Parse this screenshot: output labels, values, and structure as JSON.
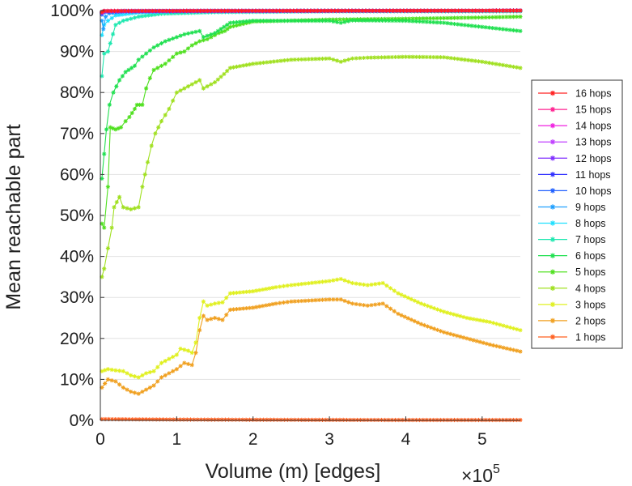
{
  "chart_data": {
    "type": "line",
    "xlabel": "Volume (m) [edges]",
    "ylabel": "Mean reachable part",
    "x_multiplier": {
      "base": "×10",
      "exponent": "5"
    },
    "xlim": [
      0,
      5.5
    ],
    "ylim": [
      0,
      100
    ],
    "x_ticks": [
      0,
      1,
      2,
      3,
      4,
      5
    ],
    "x_tick_labels": [
      "0",
      "1",
      "2",
      "3",
      "4",
      "5"
    ],
    "y_ticks": [
      0,
      10,
      20,
      30,
      40,
      50,
      60,
      70,
      80,
      90,
      100
    ],
    "y_tick_labels": [
      "0%",
      "10%",
      "20%",
      "30%",
      "40%",
      "50%",
      "60%",
      "70%",
      "80%",
      "90%",
      "100%"
    ],
    "grid": "horizontal",
    "legend_position": "right",
    "series": [
      {
        "name": "16 hops",
        "color": "#ff2020",
        "points": [
          [
            0.02,
            99.6
          ],
          [
            0.05,
            99.9
          ],
          [
            5.5,
            100
          ]
        ]
      },
      {
        "name": "15 hops",
        "color": "#ff2090",
        "points": [
          [
            0.02,
            99.6
          ],
          [
            0.05,
            99.9
          ],
          [
            5.5,
            100
          ]
        ]
      },
      {
        "name": "14 hops",
        "color": "#f020e0",
        "points": [
          [
            0.02,
            99.6
          ],
          [
            0.05,
            99.9
          ],
          [
            5.5,
            100
          ]
        ]
      },
      {
        "name": "13 hops",
        "color": "#c040ff",
        "points": [
          [
            0.02,
            99.5
          ],
          [
            0.05,
            99.9
          ],
          [
            5.5,
            100
          ]
        ]
      },
      {
        "name": "12 hops",
        "color": "#8030ff",
        "points": [
          [
            0.02,
            99.4
          ],
          [
            0.05,
            99.8
          ],
          [
            5.5,
            100
          ]
        ]
      },
      {
        "name": "11 hops",
        "color": "#3030ff",
        "points": [
          [
            0.02,
            99.3
          ],
          [
            0.06,
            99.8
          ],
          [
            5.5,
            100
          ]
        ]
      },
      {
        "name": "10 hops",
        "color": "#2060ff",
        "points": [
          [
            0.02,
            99.0
          ],
          [
            0.06,
            99.6
          ],
          [
            0.3,
            99.9
          ],
          [
            5.5,
            100
          ]
        ]
      },
      {
        "name": "9 hops",
        "color": "#20a0ff",
        "points": [
          [
            0.02,
            97.5
          ],
          [
            0.04,
            95.5
          ],
          [
            0.07,
            98.5
          ],
          [
            0.12,
            99.3
          ],
          [
            0.3,
            99.7
          ],
          [
            1,
            99.9
          ],
          [
            5.5,
            100
          ]
        ]
      },
      {
        "name": "8 hops",
        "color": "#20e0ff",
        "points": [
          [
            0.02,
            94
          ],
          [
            0.05,
            96.5
          ],
          [
            0.1,
            97.5
          ],
          [
            0.2,
            98.8
          ],
          [
            0.5,
            99.5
          ],
          [
            1,
            99.8
          ],
          [
            5.5,
            100
          ]
        ]
      },
      {
        "name": "7 hops",
        "color": "#20e8b0",
        "points": [
          [
            0.02,
            84
          ],
          [
            0.05,
            89.5
          ],
          [
            0.1,
            90
          ],
          [
            0.13,
            92
          ],
          [
            0.2,
            96.5
          ],
          [
            0.3,
            97.5
          ],
          [
            0.5,
            98.5
          ],
          [
            0.8,
            99.2
          ],
          [
            1.5,
            99.6
          ],
          [
            3,
            99.8
          ],
          [
            5.5,
            99.8
          ]
        ]
      },
      {
        "name": "6 hops",
        "color": "#20e050",
        "points": [
          [
            0.02,
            59
          ],
          [
            0.05,
            65
          ],
          [
            0.08,
            71
          ],
          [
            0.12,
            77
          ],
          [
            0.17,
            80
          ],
          [
            0.25,
            83
          ],
          [
            0.33,
            85
          ],
          [
            0.45,
            86.5
          ],
          [
            0.5,
            88
          ],
          [
            0.6,
            89.5
          ],
          [
            0.7,
            91
          ],
          [
            0.85,
            92.5
          ],
          [
            1.0,
            93.5
          ],
          [
            1.1,
            94.2
          ],
          [
            1.3,
            95
          ],
          [
            1.35,
            93.5
          ],
          [
            1.5,
            94.5
          ],
          [
            1.62,
            96
          ],
          [
            1.7,
            97
          ],
          [
            2,
            97.5
          ],
          [
            2.5,
            97.5
          ],
          [
            3,
            97.5
          ],
          [
            3.15,
            97
          ],
          [
            3.3,
            97.6
          ],
          [
            4,
            97.5
          ],
          [
            4.5,
            97
          ],
          [
            5,
            96
          ],
          [
            5.5,
            95
          ]
        ]
      },
      {
        "name": "5 hops",
        "color": "#50e020",
        "points": [
          [
            0.02,
            48
          ],
          [
            0.05,
            47
          ],
          [
            0.1,
            57
          ],
          [
            0.13,
            71.5
          ],
          [
            0.2,
            71
          ],
          [
            0.27,
            71.5
          ],
          [
            0.33,
            73
          ],
          [
            0.38,
            74
          ],
          [
            0.45,
            76
          ],
          [
            0.48,
            77
          ],
          [
            0.55,
            77
          ],
          [
            0.6,
            81
          ],
          [
            0.65,
            83.5
          ],
          [
            0.7,
            85.5
          ],
          [
            0.85,
            87
          ],
          [
            1.0,
            89.5
          ],
          [
            1.1,
            90
          ],
          [
            1.2,
            91.5
          ],
          [
            1.3,
            92.5
          ],
          [
            1.4,
            93
          ],
          [
            1.5,
            94
          ],
          [
            1.55,
            94.5
          ],
          [
            1.63,
            95
          ],
          [
            1.7,
            96
          ],
          [
            2,
            97.3
          ],
          [
            3,
            97.8
          ],
          [
            4,
            98
          ],
          [
            5,
            98.3
          ],
          [
            5.5,
            98.5
          ]
        ]
      },
      {
        "name": "4 hops",
        "color": "#a0e020",
        "points": [
          [
            0.02,
            35
          ],
          [
            0.05,
            37
          ],
          [
            0.1,
            42
          ],
          [
            0.15,
            47
          ],
          [
            0.18,
            52
          ],
          [
            0.25,
            54.5
          ],
          [
            0.3,
            52
          ],
          [
            0.4,
            51.5
          ],
          [
            0.5,
            52
          ],
          [
            0.55,
            57
          ],
          [
            0.62,
            63
          ],
          [
            0.67,
            67
          ],
          [
            0.72,
            70
          ],
          [
            0.8,
            73
          ],
          [
            0.9,
            76
          ],
          [
            1.0,
            80
          ],
          [
            1.1,
            81
          ],
          [
            1.2,
            82
          ],
          [
            1.3,
            83
          ],
          [
            1.35,
            81
          ],
          [
            1.5,
            82.5
          ],
          [
            1.62,
            84.5
          ],
          [
            1.7,
            86
          ],
          [
            2,
            87
          ],
          [
            2.5,
            88
          ],
          [
            3,
            88.3
          ],
          [
            3.15,
            87.5
          ],
          [
            3.3,
            88.3
          ],
          [
            3.5,
            88.5
          ],
          [
            4,
            88.7
          ],
          [
            4.5,
            88.6
          ],
          [
            5,
            87.5
          ],
          [
            5.5,
            86
          ]
        ]
      },
      {
        "name": "3 hops",
        "color": "#e0f020",
        "points": [
          [
            0.02,
            12
          ],
          [
            0.1,
            12.5
          ],
          [
            0.2,
            12.2
          ],
          [
            0.3,
            12
          ],
          [
            0.4,
            11
          ],
          [
            0.5,
            10.5
          ],
          [
            0.6,
            11.5
          ],
          [
            0.7,
            12
          ],
          [
            0.8,
            14
          ],
          [
            0.9,
            15
          ],
          [
            1.0,
            16
          ],
          [
            1.05,
            17.5
          ],
          [
            1.15,
            17
          ],
          [
            1.2,
            16.5
          ],
          [
            1.25,
            19
          ],
          [
            1.3,
            25
          ],
          [
            1.35,
            29
          ],
          [
            1.4,
            28
          ],
          [
            1.5,
            28.5
          ],
          [
            1.6,
            28.8
          ],
          [
            1.7,
            31
          ],
          [
            2,
            31.5
          ],
          [
            2.3,
            32.5
          ],
          [
            2.5,
            33
          ],
          [
            3,
            34
          ],
          [
            3.15,
            34.5
          ],
          [
            3.3,
            33.5
          ],
          [
            3.5,
            33
          ],
          [
            3.7,
            33.5
          ],
          [
            3.9,
            31
          ],
          [
            4.2,
            28.5
          ],
          [
            4.5,
            26.5
          ],
          [
            4.8,
            25
          ],
          [
            5.1,
            24
          ],
          [
            5.5,
            22
          ]
        ]
      },
      {
        "name": "2 hops",
        "color": "#f0a020",
        "points": [
          [
            0.02,
            8
          ],
          [
            0.1,
            10
          ],
          [
            0.2,
            9.5
          ],
          [
            0.3,
            8
          ],
          [
            0.4,
            7
          ],
          [
            0.5,
            6.5
          ],
          [
            0.6,
            7.5
          ],
          [
            0.7,
            8.5
          ],
          [
            0.8,
            10.5
          ],
          [
            0.9,
            11.5
          ],
          [
            1.0,
            12.5
          ],
          [
            1.1,
            14
          ],
          [
            1.2,
            13.5
          ],
          [
            1.25,
            16.5
          ],
          [
            1.3,
            22
          ],
          [
            1.35,
            25.5
          ],
          [
            1.4,
            24.5
          ],
          [
            1.5,
            25
          ],
          [
            1.6,
            24.5
          ],
          [
            1.7,
            27
          ],
          [
            2,
            27.5
          ],
          [
            2.3,
            28.5
          ],
          [
            2.5,
            29
          ],
          [
            3,
            29.5
          ],
          [
            3.15,
            29.5
          ],
          [
            3.3,
            28.5
          ],
          [
            3.5,
            28
          ],
          [
            3.7,
            28.5
          ],
          [
            3.9,
            26
          ],
          [
            4.2,
            23.5
          ],
          [
            4.5,
            21.5
          ],
          [
            4.8,
            20
          ],
          [
            5.1,
            18.5
          ],
          [
            5.5,
            16.8
          ]
        ]
      },
      {
        "name": "1 hops",
        "color": "#ff6020",
        "points": [
          [
            0.02,
            0.3
          ],
          [
            1,
            0.2
          ],
          [
            2,
            0.15
          ],
          [
            3,
            0.12
          ],
          [
            4,
            0.1
          ],
          [
            5,
            0.1
          ],
          [
            5.5,
            0.1
          ]
        ]
      }
    ]
  }
}
